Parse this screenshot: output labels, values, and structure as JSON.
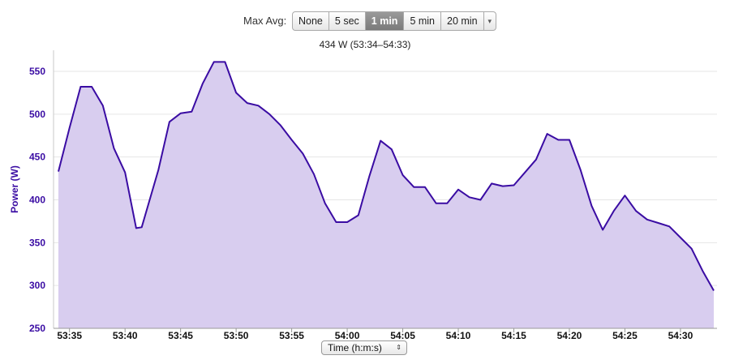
{
  "controls": {
    "label": "Max Avg:",
    "options": [
      "None",
      "5 sec",
      "1 min",
      "5 min",
      "20 min"
    ],
    "selected": "1 min",
    "dropdown_glyph": "▾"
  },
  "subtitle": "434 W (53:34–54:33)",
  "x_select": {
    "label": "Time (h:m:s)",
    "arrows": "⇕"
  },
  "colors": {
    "line": "#3a0ca3",
    "fill": "#d8cdef",
    "axis_text": "#3a0ca3",
    "grid": "#e6e6e6"
  },
  "chart_data": {
    "type": "area",
    "ylabel": "Power (W)",
    "xlabel": "Time (h:m:s)",
    "ylim": [
      250,
      560
    ],
    "yticks": [
      250,
      300,
      350,
      400,
      450,
      500,
      550
    ],
    "xlim": [
      "53:34",
      "54:33"
    ],
    "xticks": [
      "53:35",
      "53:40",
      "53:45",
      "53:50",
      "53:55",
      "54:00",
      "54:05",
      "54:10",
      "54:15",
      "54:20",
      "54:25",
      "54:30"
    ],
    "grid": true,
    "series": [
      {
        "name": "Power",
        "x": [
          "53:34",
          "53:35",
          "53:36",
          "53:37",
          "53:38",
          "53:39",
          "53:40",
          "53:41",
          "53:41.5",
          "53:43",
          "53:44",
          "53:45",
          "53:46",
          "53:47",
          "53:48",
          "53:49",
          "53:50",
          "53:51",
          "53:52",
          "53:53",
          "53:54",
          "53:55",
          "53:56",
          "53:57",
          "53:58",
          "53:59",
          "54:00",
          "54:01",
          "54:02",
          "54:03",
          "54:04",
          "54:05",
          "54:06",
          "54:07",
          "54:08",
          "54:09",
          "54:10",
          "54:11",
          "54:12",
          "54:13",
          "54:14",
          "54:15",
          "54:16",
          "54:17",
          "54:18",
          "54:19",
          "54:20",
          "54:21",
          "54:22",
          "54:23",
          "54:24",
          "54:25",
          "54:26",
          "54:27",
          "54:28",
          "54:29",
          "54:30",
          "54:31",
          "54:32",
          "54:33"
        ],
        "values": [
          433,
          484,
          532,
          532,
          510,
          460,
          432,
          367,
          368,
          435,
          491,
          501,
          503,
          536,
          561,
          561,
          525,
          513,
          510,
          500,
          487,
          470,
          454,
          430,
          396,
          374,
          374,
          382,
          428,
          469,
          459,
          429,
          415,
          415,
          396,
          396,
          412,
          403,
          400,
          419,
          416,
          417,
          432,
          447,
          477,
          470,
          470,
          435,
          393,
          365,
          387,
          405,
          387,
          377,
          373,
          369,
          356,
          343,
          317,
          294
        ]
      }
    ]
  }
}
